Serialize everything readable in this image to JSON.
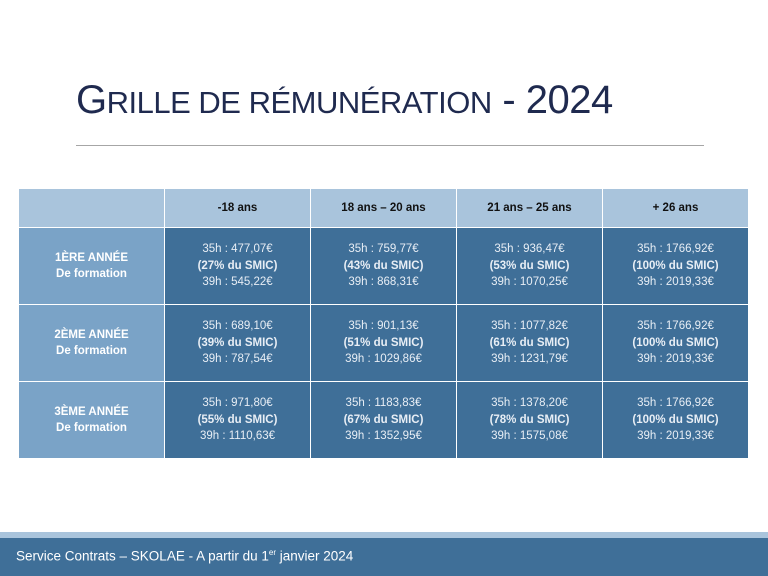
{
  "title": {
    "first_letter": "G",
    "rest_smallcaps": "RILLE DE RÉMUNÉRATION",
    "separator": " - ",
    "year": "2024"
  },
  "table": {
    "corner": "",
    "columns": [
      "-18 ans",
      "18 ans – 20 ans",
      "21 ans – 25 ans",
      "+ 26 ans"
    ],
    "rows": [
      {
        "label_line1": "1ÈRE ANNÉE",
        "label_line2": "De formation",
        "cells": [
          {
            "h35": "35h : 477,07€",
            "pct": "(27% du SMIC)",
            "h39": "39h : 545,22€"
          },
          {
            "h35": "35h : 759,77€",
            "pct": "(43% du SMIC)",
            "h39": "39h : 868,31€"
          },
          {
            "h35": "35h : 936,47€",
            "pct": "(53% du SMIC)",
            "h39": "39h : 1070,25€"
          },
          {
            "h35": "35h : 1766,92€",
            "pct": "(100% du SMIC)",
            "h39": "39h : 2019,33€"
          }
        ]
      },
      {
        "label_line1": "2ÈME ANNÉE",
        "label_line2": "De formation",
        "cells": [
          {
            "h35": "35h : 689,10€",
            "pct": "(39% du SMIC)",
            "h39": "39h :  787,54€"
          },
          {
            "h35": "35h : 901,13€",
            "pct": "(51% du SMIC)",
            "h39": "39h :  1029,86€"
          },
          {
            "h35": "35h : 1077,82€",
            "pct": "(61% du SMIC)",
            "h39": "39h : 1231,79€"
          },
          {
            "h35": "35h : 1766,92€",
            "pct": "(100% du SMIC)",
            "h39": "39h : 2019,33€"
          }
        ]
      },
      {
        "label_line1": "3ÈME ANNÉE",
        "label_line2": "De formation",
        "cells": [
          {
            "h35": "35h : 971,80€",
            "pct": "(55% du SMIC)",
            "h39": "39h : 1110,63€"
          },
          {
            "h35": "35h : 1183,83€",
            "pct": "(67% du SMIC)",
            "h39": "39h : 1352,95€"
          },
          {
            "h35": "35h : 1378,20€",
            "pct": "(78% du SMIC)",
            "h39": "39h : 1575,08€"
          },
          {
            "h35": "35h : 1766,92€",
            "pct": "(100% du SMIC)",
            "h39": "39h : 2019,33€"
          }
        ]
      }
    ]
  },
  "footer": {
    "text_before": "Service Contrats – SKOLAE - A partir du 1",
    "superscript": "er",
    "text_after": " janvier 2024"
  },
  "colors": {
    "title": "#1f2a4f",
    "header_light": "#a9c4dc",
    "row_header": "#7aa3c7",
    "cell_dark": "#3f6f98",
    "footer": "#3f6f98"
  }
}
